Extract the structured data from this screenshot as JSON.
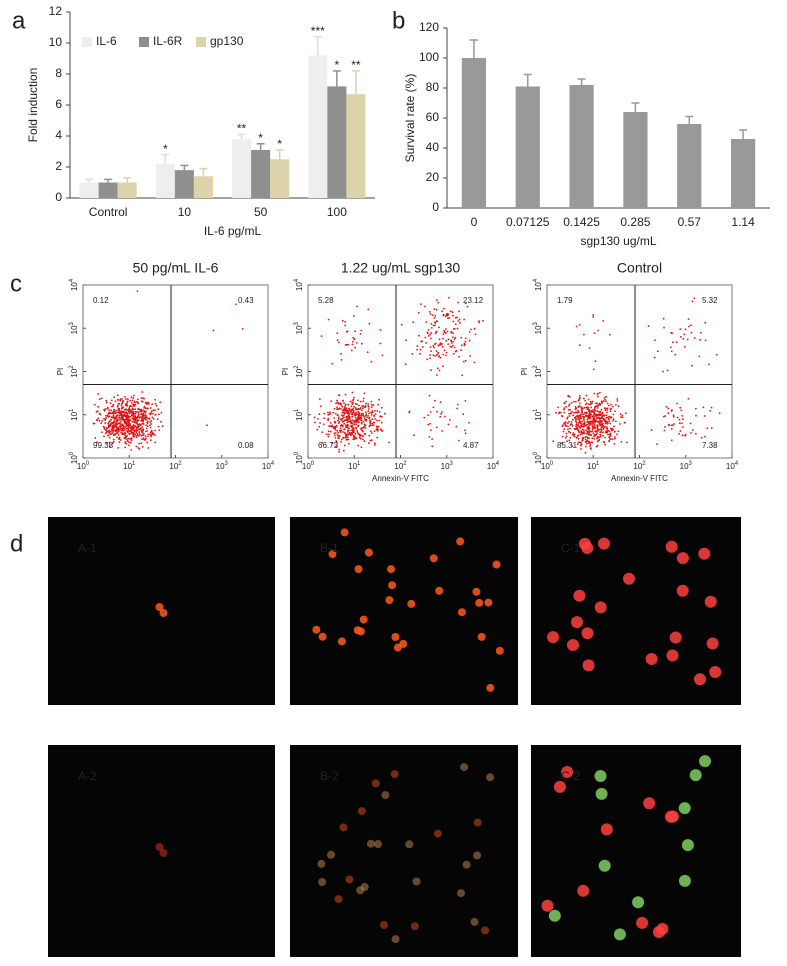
{
  "chart_data": [
    {
      "type": "bar",
      "panel": "a",
      "y_label": "Fold induction",
      "x_label": "IL-6 pg/mL",
      "categories": [
        "Control",
        "10",
        "50",
        "100"
      ],
      "ylim": [
        0,
        12
      ],
      "yticks": [
        0,
        2,
        4,
        6,
        8,
        10,
        12
      ],
      "series": [
        {
          "name": "IL-6",
          "color": "#eeeeee",
          "values": [
            1.0,
            2.2,
            3.8,
            9.2
          ],
          "errors": [
            0.2,
            0.6,
            0.3,
            1.2
          ],
          "annotations": [
            null,
            "*",
            "**",
            "***"
          ]
        },
        {
          "name": "IL-6R",
          "color": "#8f8f8f",
          "values": [
            1.0,
            1.8,
            3.1,
            7.2
          ],
          "errors": [
            0.2,
            0.3,
            0.4,
            1.0
          ],
          "annotations": [
            null,
            null,
            "*",
            "*"
          ]
        },
        {
          "name": "gp130",
          "color": "#ddd3ab",
          "values": [
            1.0,
            1.4,
            2.5,
            6.7
          ],
          "errors": [
            0.3,
            0.5,
            0.6,
            1.5
          ],
          "annotations": [
            null,
            null,
            "*",
            "**"
          ]
        }
      ]
    },
    {
      "type": "bar",
      "panel": "b",
      "y_label": "Survival rate (%)",
      "x_label": "sgp130 ug/mL",
      "categories": [
        "0",
        "0.07125",
        "0.1425",
        "0.285",
        "0.57",
        "1.14"
      ],
      "values": [
        100,
        81,
        82,
        64,
        56,
        46
      ],
      "errors": [
        12,
        8,
        4,
        6,
        5,
        6
      ],
      "color": "#999999",
      "ylim": [
        0,
        120
      ],
      "yticks": [
        0,
        20,
        40,
        60,
        80,
        100,
        120
      ]
    },
    {
      "type": "scatter",
      "panel": "c",
      "title": "50 pg/mL IL-6",
      "y_label": "PI",
      "log_scale": true,
      "color": "#e01414",
      "xlim": [
        1,
        10000
      ],
      "ylim": [
        1,
        10000
      ],
      "xticks": [
        {
          "value": 1,
          "label": "10^0"
        },
        {
          "value": 10,
          "label": "10^1"
        },
        {
          "value": 100,
          "label": "10^2"
        },
        {
          "value": 1000,
          "label": "10^3"
        },
        {
          "value": 10000,
          "label": "10^4"
        }
      ],
      "yticks": [
        {
          "value": 1,
          "label": "10^0"
        },
        {
          "value": 10,
          "label": "10^1"
        },
        {
          "value": 100,
          "label": "10^2"
        },
        {
          "value": 1000,
          "label": "10^3"
        },
        {
          "value": 10000,
          "label": "10^4"
        }
      ],
      "gates": {
        "x": 80,
        "y": 50
      },
      "quadrants": {
        "upper_left": 0.12,
        "upper_right": 0.43,
        "lower_left": 99.38,
        "lower_right": 0.08
      }
    },
    {
      "type": "scatter",
      "title": "1.22 ug/mL sgp130",
      "x_label": "Annexin-V FITC",
      "y_label": "PI",
      "log_scale": true,
      "color": "#e01414",
      "xlim": [
        1,
        10000
      ],
      "ylim": [
        1,
        10000
      ],
      "xticks": [
        {
          "value": 1,
          "label": "10^0"
        },
        {
          "value": 10,
          "label": "10^1"
        },
        {
          "value": 100,
          "label": "10^2"
        },
        {
          "value": 1000,
          "label": "10^3"
        },
        {
          "value": 10000,
          "label": "10^4"
        }
      ],
      "yticks": [
        {
          "value": 1,
          "label": "10^0"
        },
        {
          "value": 10,
          "label": "10^1"
        },
        {
          "value": 100,
          "label": "10^2"
        },
        {
          "value": 1000,
          "label": "10^3"
        },
        {
          "value": 10000,
          "label": "10^4"
        }
      ],
      "gates": {
        "x": 80,
        "y": 50
      },
      "quadrants": {
        "upper_left": 5.28,
        "upper_right": 23.12,
        "lower_left": 66.73,
        "lower_right": 4.87
      }
    },
    {
      "type": "scatter",
      "title": "Control",
      "x_label": "Annexin-V FITC",
      "y_label": "PI",
      "log_scale": true,
      "color": "#e01414",
      "xlim": [
        1,
        10000
      ],
      "ylim": [
        1,
        10000
      ],
      "xticks": [
        {
          "value": 1,
          "label": "10^0"
        },
        {
          "value": 10,
          "label": "10^1"
        },
        {
          "value": 100,
          "label": "10^2"
        },
        {
          "value": 1000,
          "label": "10^3"
        },
        {
          "value": 10000,
          "label": "10^4"
        }
      ],
      "yticks": [
        {
          "value": 1,
          "label": "10^0"
        },
        {
          "value": 10,
          "label": "10^1"
        },
        {
          "value": 100,
          "label": "10^2"
        },
        {
          "value": 1000,
          "label": "10^3"
        },
        {
          "value": 10000,
          "label": "10^4"
        }
      ],
      "gates": {
        "x": 80,
        "y": 50
      },
      "quadrants": {
        "upper_left": 1.79,
        "upper_right": 5.32,
        "lower_left": 85.31,
        "lower_right": 7.38
      }
    }
  ],
  "images": {
    "panel": "d",
    "items": [
      {
        "label": "A-1"
      },
      {
        "label": "B-1"
      },
      {
        "label": "C-1"
      },
      {
        "label": "A-2"
      },
      {
        "label": "B-2"
      },
      {
        "label": "C-2"
      }
    ]
  }
}
